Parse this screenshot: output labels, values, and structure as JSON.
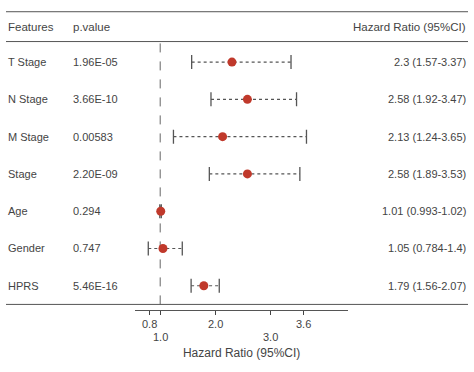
{
  "chart_data": {
    "type": "forest",
    "column_headers": [
      "Features",
      "p.value",
      "Hazard Ratio (95%CI)"
    ],
    "categories": [
      "T Stage",
      "N Stage",
      "M Stage",
      "Stage",
      "Age",
      "Gender",
      "HPRS"
    ],
    "p_values": [
      "1.96E-05",
      "3.66E-10",
      "0.00583",
      "2.20E-09",
      "0.294",
      "0.747",
      "5.46E-16"
    ],
    "values": [
      2.3,
      2.58,
      2.13,
      2.58,
      1.01,
      1.05,
      1.79
    ],
    "value_labels": [
      "2.3 (1.57-3.37)",
      "2.58 (1.92-3.47)",
      "2.13 (1.24-3.65)",
      "2.58 (1.89-3.53)",
      "1.01 (0.993-1.02)",
      "1.05 (0.784-1.4)",
      "1.79 (1.56-2.07)"
    ],
    "ci_low": [
      1.57,
      1.92,
      1.24,
      1.89,
      0.993,
      0.784,
      1.56
    ],
    "ci_high": [
      3.37,
      3.47,
      3.65,
      3.53,
      1.02,
      1.4,
      2.07
    ],
    "color": "#c0392b",
    "ci_color": "#555555",
    "ref_line": 1.0,
    "ref_color": "#666666",
    "xlabel": "Hazard Ratio (95%CI)",
    "xlim": [
      0.55,
      4.4
    ],
    "xticks": [
      0.8,
      {
        "value": 1.0,
        "label": "1.0"
      },
      {
        "value": 2.0,
        "label": "2.0"
      },
      {
        "value": 3.0,
        "label": "3.0"
      },
      3.6
    ],
    "data_labels": true,
    "grid": false
  }
}
